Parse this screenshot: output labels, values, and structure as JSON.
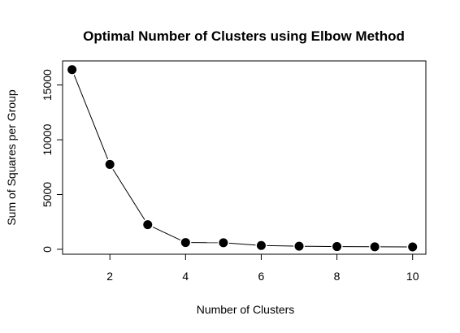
{
  "chart_data": {
    "type": "line",
    "title": "Optimal Number of Clusters using Elbow Method",
    "xlabel": "Number of Clusters",
    "ylabel": "Sum of Squares per Group",
    "x": [
      1,
      2,
      3,
      4,
      5,
      6,
      7,
      8,
      9,
      10
    ],
    "series": [
      {
        "values": [
          16400,
          7750,
          2250,
          620,
          600,
          350,
          280,
          250,
          230,
          220
        ]
      }
    ],
    "xlim": [
      0.75,
      10.35
    ],
    "ylim": [
      -450,
      17200
    ],
    "xticks": [
      2,
      4,
      6,
      8,
      10
    ],
    "yticks": [
      0,
      5000,
      10000,
      15000
    ],
    "grid": false,
    "legend": "none",
    "colors": {
      "line": "#000000",
      "marker": "#000000",
      "axis": "#000000"
    }
  }
}
